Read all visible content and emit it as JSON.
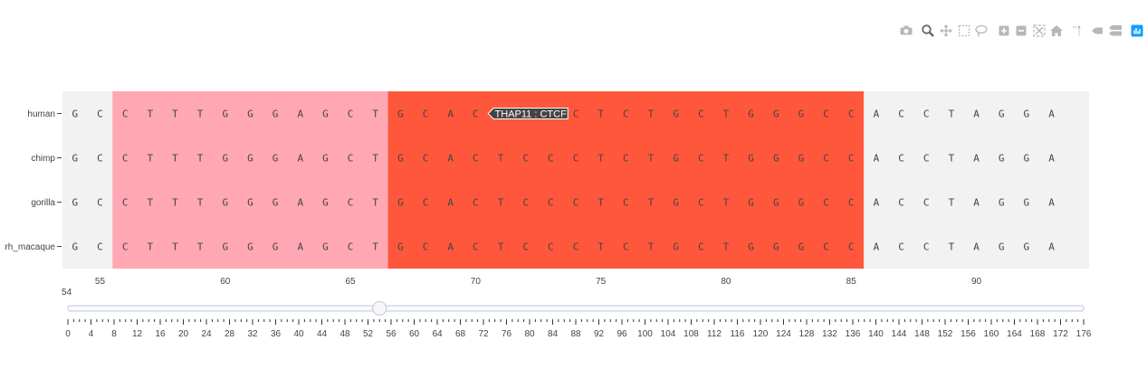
{
  "chart_data": {
    "type": "heatmap",
    "rows": [
      "human",
      "chimp",
      "gorilla",
      "rh_macaque"
    ],
    "x_start": 54,
    "x_end": 94,
    "sequence": [
      "G",
      "C",
      "C",
      "T",
      "T",
      "T",
      "G",
      "G",
      "G",
      "A",
      "G",
      "C",
      "T",
      "G",
      "C",
      "A",
      "C",
      "T",
      "C",
      "C",
      "C",
      "T",
      "C",
      "T",
      "G",
      "C",
      "T",
      "G",
      "G",
      "G",
      "C",
      "C",
      "A",
      "C",
      "C",
      "T",
      "A",
      "G",
      "G",
      "A"
    ],
    "xlim": [
      53.5,
      94.5
    ],
    "x_ticks": [
      55,
      60,
      65,
      70,
      75,
      80,
      85,
      90
    ],
    "regions": [
      {
        "start": 55.5,
        "end": 66.5,
        "color": "#FFA8B3"
      },
      {
        "start": 66.5,
        "end": 85.5,
        "color": "#FF573C"
      }
    ],
    "background_color": "#F2F2F2",
    "hover": {
      "text": "THAP11 : CTCF",
      "x": 70.5,
      "row": "human"
    },
    "slider": {
      "value": 54,
      "min": 0,
      "max": 176,
      "tick_step": 4,
      "minor_step": 1,
      "tick_labels": [
        "0",
        "4",
        "8",
        "12",
        "16",
        "20",
        "24",
        "28",
        "32",
        "36",
        "40",
        "44",
        "48",
        "52",
        "56",
        "60",
        "64",
        "68",
        "72",
        "76",
        "80",
        "84",
        "88",
        "92",
        "96",
        "100",
        "104",
        "108",
        "112",
        "116",
        "120",
        "124",
        "128",
        "132",
        "136",
        "140",
        "144",
        "148",
        "152",
        "156",
        "160",
        "164",
        "168",
        "172",
        "176"
      ]
    }
  },
  "modebar": [
    {
      "name": "camera-icon"
    },
    {
      "name": "zoom-icon",
      "active": true
    },
    {
      "name": "pan-icon"
    },
    {
      "name": "box-select-icon"
    },
    {
      "name": "lasso-select-icon"
    },
    {
      "name": "zoom-in-icon"
    },
    {
      "name": "zoom-out-icon"
    },
    {
      "name": "autoscale-icon"
    },
    {
      "name": "reset-axes-icon"
    },
    {
      "name": "spike-lines-icon"
    },
    {
      "name": "hover-closest-icon"
    },
    {
      "name": "hover-compare-icon"
    },
    {
      "name": "plotly-logo-icon"
    }
  ],
  "colors": {
    "axis_text": "#444444",
    "icon": "#b7b7b7",
    "icon_active": "#666666",
    "logo": "#119dff"
  }
}
